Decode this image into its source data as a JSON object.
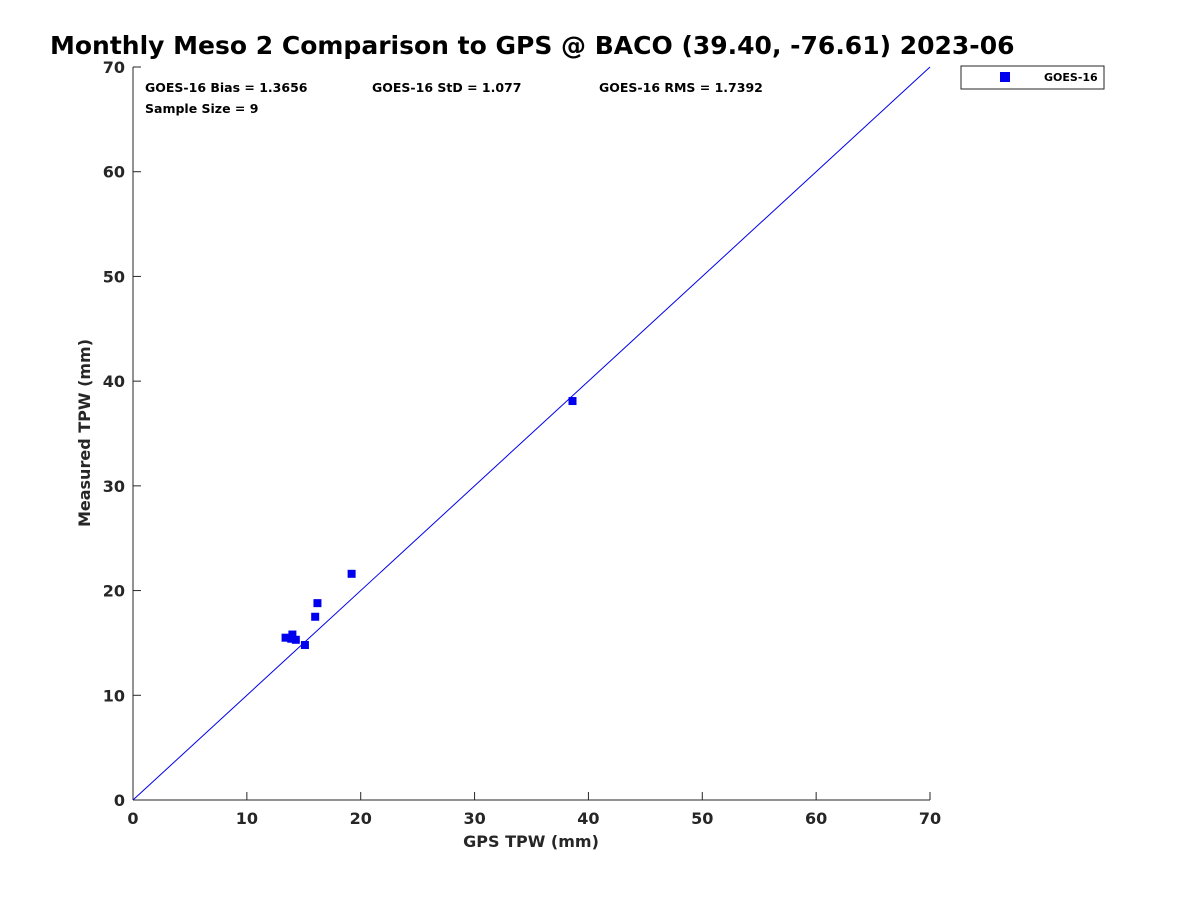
{
  "chart_data": {
    "type": "scatter",
    "title": "Monthly Meso 2 Comparison to GPS @ BACO (39.40, -76.61) 2023-06",
    "xlabel": "GPS TPW (mm)",
    "ylabel": "Measured TPW (mm)",
    "xlim": [
      0,
      70
    ],
    "ylim": [
      0,
      70
    ],
    "xticks": [
      "0",
      "10",
      "20",
      "30",
      "40",
      "50",
      "60",
      "70"
    ],
    "yticks": [
      "0",
      "10",
      "20",
      "30",
      "40",
      "50",
      "60",
      "70"
    ],
    "grid": false,
    "legend_position": "outside top-right",
    "series": [
      {
        "name": "GOES-16",
        "color": "#0000ee",
        "marker": "square",
        "points": [
          {
            "x": 13.4,
            "y": 15.5
          },
          {
            "x": 14.0,
            "y": 15.8
          },
          {
            "x": 13.9,
            "y": 15.4
          },
          {
            "x": 14.3,
            "y": 15.3
          },
          {
            "x": 15.1,
            "y": 14.8
          },
          {
            "x": 16.0,
            "y": 17.5
          },
          {
            "x": 16.2,
            "y": 18.8
          },
          {
            "x": 19.2,
            "y": 21.6
          },
          {
            "x": 38.6,
            "y": 38.1
          }
        ]
      }
    ],
    "reference_line": {
      "from": [
        0,
        0
      ],
      "to": [
        70,
        70
      ],
      "color": "#0000ee"
    },
    "annotations": {
      "bias": "GOES-16 Bias = 1.3656",
      "std": "GOES-16 StD = 1.077",
      "rms": "GOES-16 RMS = 1.7392",
      "sample_size": "Sample Size = 9"
    }
  }
}
